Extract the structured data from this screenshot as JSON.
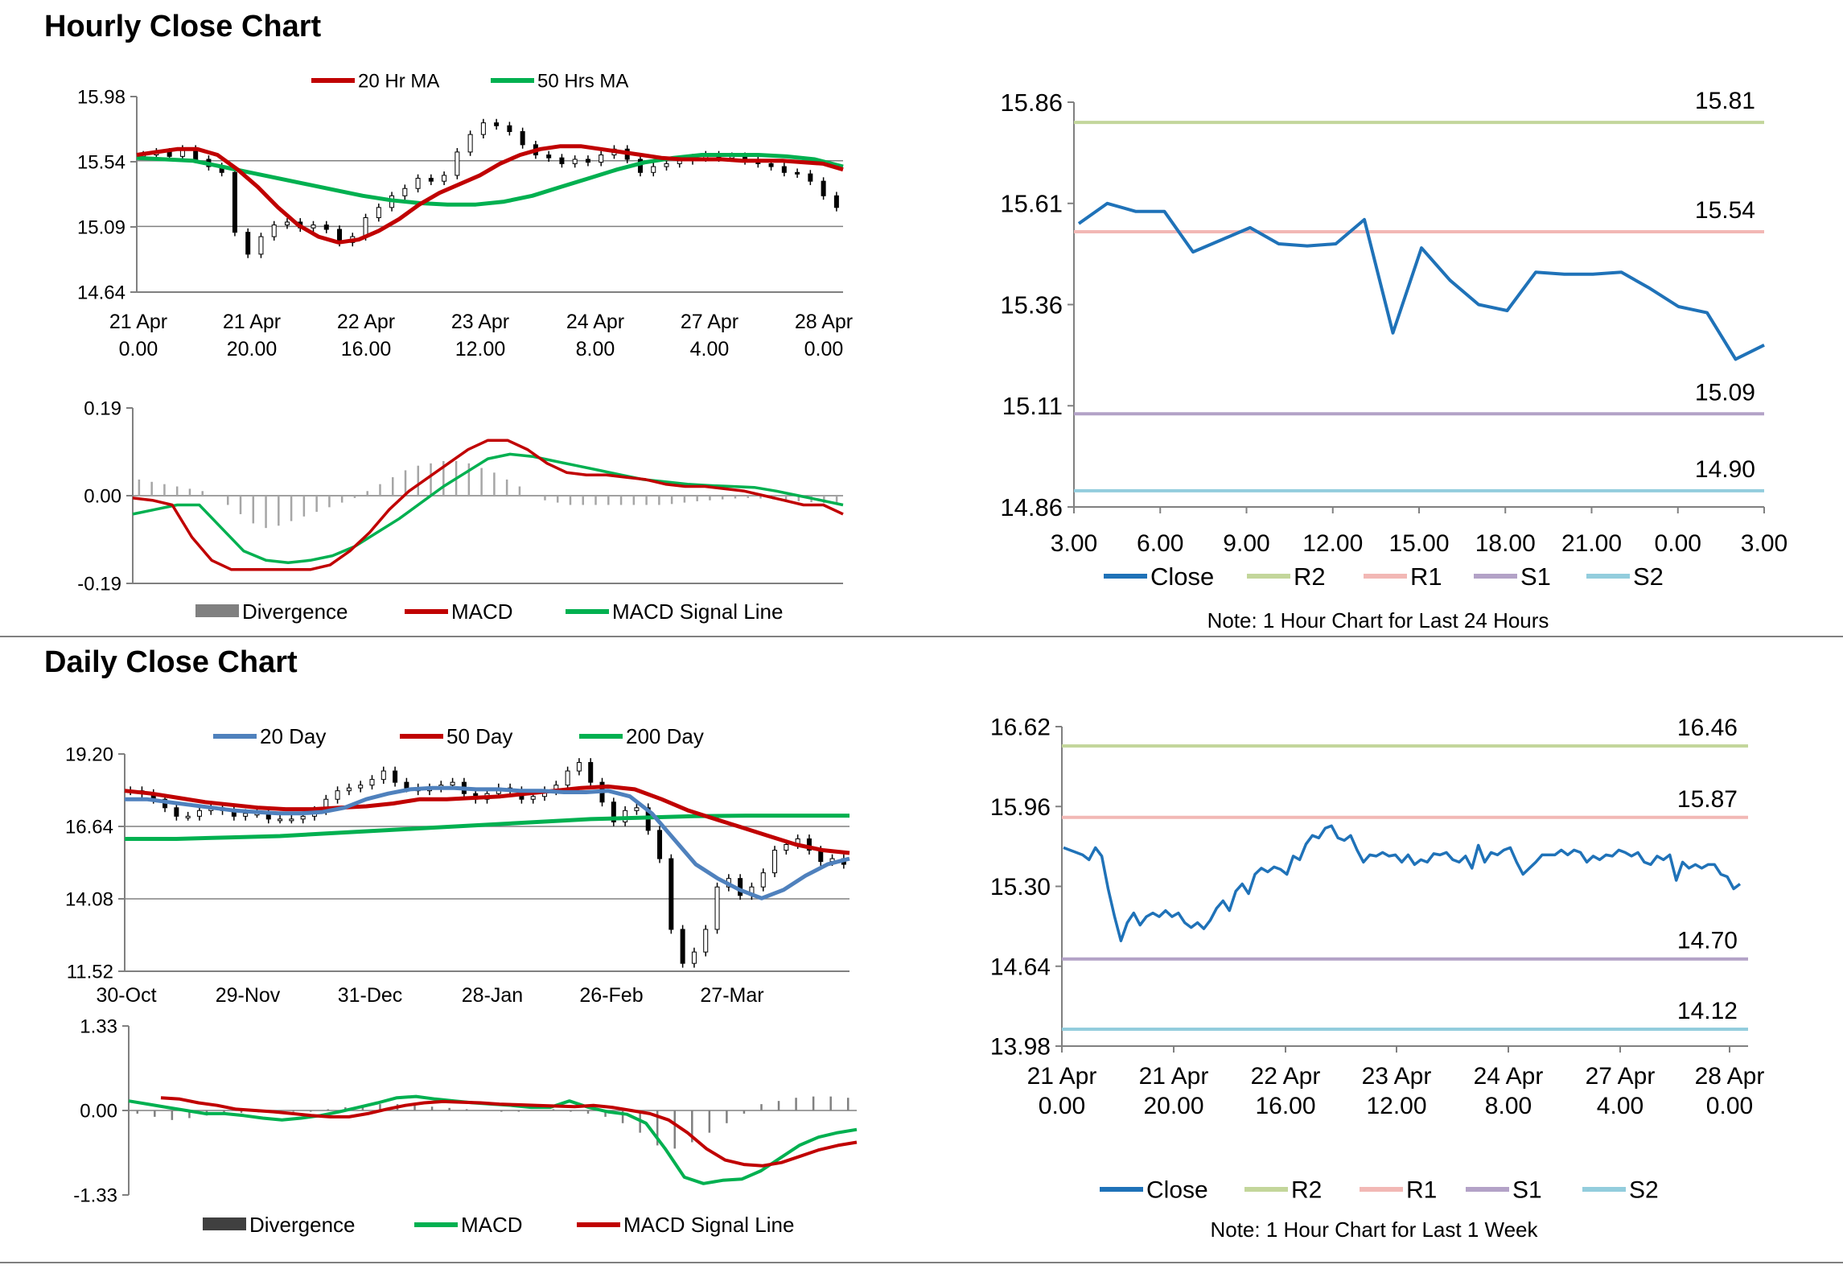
{
  "hourly_title": "Hourly Close Chart",
  "daily_title": "Daily Close Chart",
  "colors": {
    "red": "#c00000",
    "green": "#00b050",
    "blue": "#4f81bd",
    "close": "#1f72b8",
    "r2": "#c3d69b",
    "r1": "#f2b8b5",
    "s1": "#b3a2c7",
    "s2": "#93cddd",
    "grey": "#808080"
  },
  "chart_data": [
    {
      "id": "hourly_price",
      "type": "candlestick",
      "legend": [
        "20 Hr MA",
        "50 Hrs MA"
      ],
      "y_ticks": [
        "15.98",
        "15.54",
        "15.09",
        "14.64"
      ],
      "ylim": [
        14.64,
        15.98
      ],
      "x_ticks": [
        [
          "21 Apr",
          "0.00"
        ],
        [
          "21 Apr",
          "20.00"
        ],
        [
          "22 Apr",
          "16.00"
        ],
        [
          "23 Apr",
          "12.00"
        ],
        [
          "24 Apr",
          "8.00"
        ],
        [
          "27 Apr",
          "4.00"
        ],
        [
          "28 Apr",
          "0.00"
        ]
      ],
      "close": [
        15.58,
        15.6,
        15.57,
        15.62,
        15.55,
        15.5,
        15.46,
        15.05,
        14.9,
        15.02,
        15.1,
        15.12,
        15.08,
        15.1,
        15.07,
        14.98,
        15.02,
        15.15,
        15.22,
        15.3,
        15.35,
        15.42,
        15.4,
        15.44,
        15.6,
        15.72,
        15.8,
        15.78,
        15.74,
        15.65,
        15.58,
        15.56,
        15.52,
        15.55,
        15.53,
        15.58,
        15.62,
        15.55,
        15.46,
        15.5,
        15.52,
        15.54,
        15.56,
        15.58,
        15.56,
        15.57,
        15.54,
        15.52,
        15.5,
        15.46,
        15.45,
        15.4,
        15.3,
        15.22
      ],
      "ma20": [
        15.58,
        15.6,
        15.62,
        15.62,
        15.58,
        15.48,
        15.36,
        15.22,
        15.1,
        15.02,
        14.98,
        15.0,
        15.06,
        15.14,
        15.24,
        15.32,
        15.38,
        15.44,
        15.52,
        15.58,
        15.62,
        15.64,
        15.64,
        15.62,
        15.6,
        15.58,
        15.56,
        15.55,
        15.55,
        15.55,
        15.54,
        15.54,
        15.54,
        15.53,
        15.52,
        15.48
      ],
      "ma50": [
        15.56,
        15.55,
        15.54,
        15.5,
        15.46,
        15.42,
        15.38,
        15.34,
        15.3,
        15.27,
        15.25,
        15.24,
        15.24,
        15.26,
        15.3,
        15.36,
        15.42,
        15.48,
        15.53,
        15.56,
        15.58,
        15.58,
        15.58,
        15.57,
        15.55,
        15.5
      ]
    },
    {
      "id": "hourly_macd",
      "type": "line+bar",
      "legend": [
        "Divergence",
        "MACD",
        "MACD Signal Line"
      ],
      "y_ticks": [
        "0.19",
        "0.00",
        "-0.19"
      ],
      "ylim": [
        -0.19,
        0.19
      ],
      "divergence": [
        0.035,
        0.03,
        0.025,
        0.02,
        0.015,
        0.01,
        0.0,
        -0.02,
        -0.04,
        -0.06,
        -0.07,
        -0.065,
        -0.055,
        -0.045,
        -0.035,
        -0.025,
        -0.015,
        -0.005,
        0.01,
        0.025,
        0.04,
        0.055,
        0.065,
        0.07,
        0.075,
        0.075,
        0.07,
        0.06,
        0.05,
        0.035,
        0.02,
        0.0,
        -0.01,
        -0.015,
        -0.02,
        -0.02,
        -0.02,
        -0.02,
        -0.02,
        -0.02,
        -0.02,
        -0.02,
        -0.018,
        -0.015,
        -0.012,
        -0.01,
        -0.008,
        -0.006,
        -0.005,
        -0.006,
        -0.008,
        -0.01,
        -0.012,
        -0.014,
        -0.016,
        -0.02
      ],
      "macd": [
        -0.005,
        -0.01,
        -0.02,
        -0.09,
        -0.14,
        -0.16,
        -0.16,
        -0.16,
        -0.16,
        -0.16,
        -0.15,
        -0.12,
        -0.08,
        -0.03,
        0.01,
        0.04,
        0.07,
        0.1,
        0.12,
        0.12,
        0.1,
        0.07,
        0.05,
        0.045,
        0.045,
        0.04,
        0.035,
        0.025,
        0.02,
        0.02,
        0.015,
        0.01,
        0.0,
        -0.01,
        -0.02,
        -0.02,
        -0.04
      ],
      "signal": [
        -0.04,
        -0.03,
        -0.02,
        -0.02,
        -0.07,
        -0.12,
        -0.14,
        -0.145,
        -0.14,
        -0.13,
        -0.11,
        -0.08,
        -0.05,
        -0.015,
        0.02,
        0.05,
        0.08,
        0.09,
        0.085,
        0.075,
        0.065,
        0.055,
        0.045,
        0.035,
        0.03,
        0.025,
        0.022,
        0.02,
        0.018,
        0.01,
        0.0,
        -0.01,
        -0.02
      ]
    },
    {
      "id": "hourly_24h",
      "type": "line",
      "y_ticks": [
        "15.86",
        "15.61",
        "15.36",
        "15.11",
        "14.86"
      ],
      "ylim": [
        14.86,
        15.86
      ],
      "x_ticks": [
        "3.00",
        "6.00",
        "9.00",
        "12.00",
        "15.00",
        "18.00",
        "21.00",
        "0.00",
        "3.00"
      ],
      "close": [
        15.56,
        15.61,
        15.59,
        15.59,
        15.49,
        15.52,
        15.55,
        15.51,
        15.505,
        15.51,
        15.57,
        15.29,
        15.5,
        15.42,
        15.36,
        15.345,
        15.44,
        15.435,
        15.435,
        15.44,
        15.4,
        15.355,
        15.34,
        15.225,
        15.26
      ],
      "levels": [
        {
          "name": "R2",
          "value": 15.81,
          "label": "15.81"
        },
        {
          "name": "R1",
          "value": 15.54,
          "label": "15.54"
        },
        {
          "name": "S1",
          "value": 15.09,
          "label": "15.09"
        },
        {
          "name": "S2",
          "value": 14.9,
          "label": "14.90"
        }
      ],
      "legend": [
        "Close",
        "R2",
        "R1",
        "S1",
        "S2"
      ],
      "note": "Note: 1 Hour Chart for Last 24 Hours"
    },
    {
      "id": "daily_price",
      "type": "candlestick",
      "legend": [
        "20 Day",
        "50 Day",
        "200 Day"
      ],
      "y_ticks": [
        "19.20",
        "16.64",
        "14.08",
        "11.52"
      ],
      "ylim": [
        11.52,
        19.2
      ],
      "x_ticks": [
        "30-Oct",
        "29-Nov",
        "31-Dec",
        "28-Jan",
        "26-Feb",
        "27-Mar"
      ],
      "close": [
        17.9,
        17.8,
        17.6,
        17.3,
        17.0,
        17.0,
        17.2,
        17.3,
        17.2,
        17.0,
        17.1,
        17.1,
        16.9,
        16.9,
        16.9,
        17.0,
        17.2,
        17.6,
        17.9,
        18.0,
        18.1,
        18.3,
        18.6,
        18.2,
        18.0,
        17.9,
        18.0,
        18.1,
        18.2,
        17.8,
        17.6,
        17.8,
        18.0,
        17.9,
        17.6,
        17.7,
        17.9,
        18.1,
        18.6,
        18.9,
        18.2,
        17.5,
        16.8,
        17.2,
        17.3,
        16.5,
        15.5,
        13.0,
        11.8,
        12.2,
        13.0,
        14.5,
        14.8,
        14.2,
        14.5,
        15.0,
        15.8,
        16.0,
        16.2,
        15.8,
        15.4,
        15.5,
        15.3
      ],
      "ma20": [
        17.6,
        17.6,
        17.5,
        17.4,
        17.3,
        17.2,
        17.15,
        17.1,
        17.1,
        17.15,
        17.3,
        17.6,
        17.8,
        17.95,
        18.0,
        18.0,
        17.95,
        17.95,
        17.9,
        17.9,
        17.85,
        17.85,
        17.9,
        17.7,
        17.1,
        16.2,
        15.3,
        14.8,
        14.4,
        14.1,
        14.4,
        14.9,
        15.3,
        15.5
      ],
      "ma50": [
        17.9,
        17.8,
        17.65,
        17.5,
        17.4,
        17.3,
        17.25,
        17.25,
        17.3,
        17.35,
        17.45,
        17.6,
        17.6,
        17.65,
        17.7,
        17.8,
        17.9,
        18.0,
        18.05,
        17.95,
        17.6,
        17.2,
        16.9,
        16.6,
        16.3,
        16.0,
        15.8,
        15.7
      ],
      "ma200": [
        16.2,
        16.2,
        16.25,
        16.3,
        16.4,
        16.5,
        16.6,
        16.7,
        16.8,
        16.9,
        16.95,
        17.0,
        17.02,
        17.02,
        17.02
      ]
    },
    {
      "id": "daily_macd",
      "type": "line+bar",
      "legend": [
        "Divergence",
        "MACD",
        "MACD Signal Line"
      ],
      "y_ticks": [
        "1.33",
        "0.00",
        "-1.33"
      ],
      "ylim": [
        -1.33,
        1.33
      ],
      "divergence": [
        -0.05,
        -0.1,
        -0.15,
        -0.12,
        -0.08,
        -0.05,
        -0.04,
        -0.03,
        -0.02,
        -0.02,
        -0.02,
        0.02,
        0.05,
        0.08,
        0.1,
        0.1,
        0.08,
        0.06,
        0.04,
        0.02,
        0.0,
        -0.02,
        -0.02,
        0.0,
        0.02,
        -0.02,
        -0.05,
        -0.1,
        -0.2,
        -0.35,
        -0.55,
        -0.6,
        -0.5,
        -0.35,
        -0.2,
        -0.05,
        0.1,
        0.15,
        0.2,
        0.22,
        0.22,
        0.2
      ],
      "macd": [
        0.15,
        0.1,
        0.05,
        0.0,
        -0.05,
        -0.05,
        -0.08,
        -0.12,
        -0.15,
        -0.12,
        -0.08,
        -0.02,
        0.05,
        0.12,
        0.2,
        0.22,
        0.18,
        0.15,
        0.12,
        0.1,
        0.08,
        0.05,
        0.05,
        0.15,
        0.05,
        -0.02,
        -0.06,
        -0.2,
        -0.6,
        -1.05,
        -1.15,
        -1.1,
        -1.08,
        -0.95,
        -0.75,
        -0.55,
        -0.42,
        -0.35,
        -0.3
      ],
      "signal": [
        0.2,
        0.18,
        0.12,
        0.08,
        0.02,
        0.0,
        -0.02,
        -0.05,
        -0.08,
        -0.1,
        -0.1,
        -0.05,
        0.02,
        0.08,
        0.12,
        0.14,
        0.13,
        0.12,
        0.1,
        0.09,
        0.08,
        0.07,
        0.06,
        0.08,
        0.05,
        0.0,
        -0.05,
        -0.15,
        -0.35,
        -0.6,
        -0.78,
        -0.85,
        -0.87,
        -0.82,
        -0.72,
        -0.62,
        -0.55,
        -0.5
      ]
    },
    {
      "id": "weekly",
      "type": "line",
      "y_ticks": [
        "16.62",
        "15.96",
        "15.30",
        "14.64",
        "13.98"
      ],
      "ylim": [
        13.98,
        16.62
      ],
      "x_ticks": [
        [
          "21 Apr",
          "0.00"
        ],
        [
          "21 Apr",
          "20.00"
        ],
        [
          "22 Apr",
          "16.00"
        ],
        [
          "23 Apr",
          "12.00"
        ],
        [
          "24 Apr",
          "8.00"
        ],
        [
          "27 Apr",
          "4.00"
        ],
        [
          "28 Apr",
          "0.00"
        ]
      ],
      "close": [
        15.62,
        15.6,
        15.58,
        15.56,
        15.52,
        15.62,
        15.55,
        15.28,
        15.05,
        14.85,
        15.0,
        15.08,
        14.98,
        15.05,
        15.08,
        15.05,
        15.1,
        15.05,
        15.08,
        15.0,
        14.96,
        15.0,
        14.95,
        15.02,
        15.12,
        15.18,
        15.1,
        15.26,
        15.32,
        15.24,
        15.4,
        15.45,
        15.42,
        15.46,
        15.44,
        15.4,
        15.55,
        15.52,
        15.65,
        15.72,
        15.7,
        15.78,
        15.8,
        15.7,
        15.68,
        15.72,
        15.6,
        15.5,
        15.56,
        15.55,
        15.58,
        15.55,
        15.56,
        15.5,
        15.56,
        15.48,
        15.52,
        15.5,
        15.57,
        15.56,
        15.58,
        15.52,
        15.5,
        15.55,
        15.45,
        15.64,
        15.5,
        15.58,
        15.56,
        15.6,
        15.62,
        15.5,
        15.4,
        15.45,
        15.5,
        15.56,
        15.56,
        15.56,
        15.6,
        15.56,
        15.6,
        15.58,
        15.5,
        15.55,
        15.52,
        15.56,
        15.55,
        15.6,
        15.58,
        15.55,
        15.58,
        15.5,
        15.48,
        15.55,
        15.52,
        15.56,
        15.35,
        15.5,
        15.45,
        15.48,
        15.45,
        15.48,
        15.48,
        15.4,
        15.38,
        15.28,
        15.32
      ],
      "levels": [
        {
          "name": "R2",
          "value": 16.46,
          "label": "16.46"
        },
        {
          "name": "R1",
          "value": 15.87,
          "label": "15.87"
        },
        {
          "name": "S1",
          "value": 14.7,
          "label": "14.70"
        },
        {
          "name": "S2",
          "value": 14.12,
          "label": "14.12"
        }
      ],
      "legend": [
        "Close",
        "R2",
        "R1",
        "S1",
        "S2"
      ],
      "note": "Note: 1 Hour Chart for Last 1 Week"
    }
  ]
}
